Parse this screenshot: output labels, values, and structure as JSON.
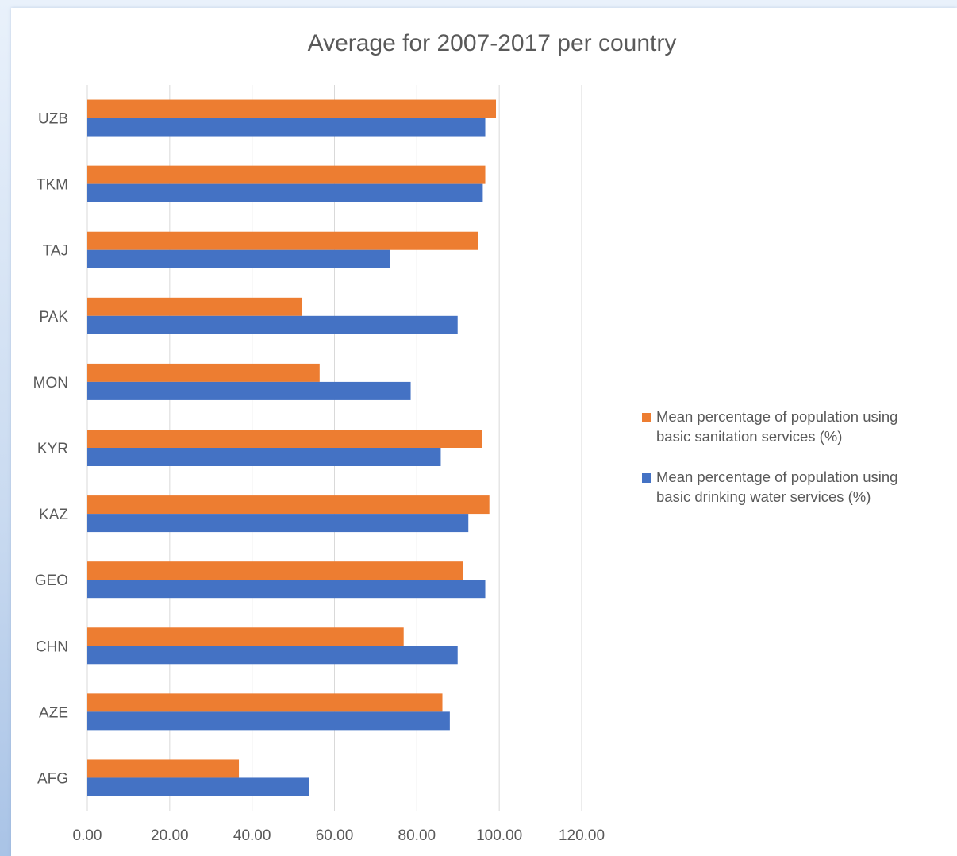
{
  "colors": {
    "sanitation": "#ed7d31",
    "water": "#4472c4",
    "grid": "#d9d9d9",
    "text": "#595959"
  },
  "chart_data": {
    "type": "bar",
    "orientation": "horizontal",
    "title": "Average for 2007-2017 per country",
    "xlabel": "",
    "ylabel": "",
    "xlim": [
      0,
      120
    ],
    "x_ticks": [
      "0.00",
      "20.00",
      "40.00",
      "60.00",
      "80.00",
      "100.00",
      "120.00"
    ],
    "categories": [
      "UZB",
      "TKM",
      "TAJ",
      "PAK",
      "MON",
      "KYR",
      "KAZ",
      "GEO",
      "CHN",
      "AZE",
      "AFG"
    ],
    "grid": true,
    "legend_position": "right",
    "series": [
      {
        "name": "Mean percentage of population using basic sanitation services (%)",
        "legend_lines": [
          "Mean percentage of population using",
          "basic sanitation services (%)"
        ],
        "color": "#ed7d31",
        "values": [
          99.2,
          96.6,
          94.8,
          52.2,
          56.4,
          95.9,
          97.6,
          91.3,
          76.8,
          86.2,
          36.8
        ]
      },
      {
        "name": "Mean percentage of population using basic drinking  water services (%)",
        "legend_lines": [
          "Mean percentage of population using",
          "basic drinking  water services (%)"
        ],
        "color": "#4472c4",
        "values": [
          96.6,
          96.0,
          73.5,
          89.9,
          78.5,
          85.8,
          92.5,
          96.6,
          89.9,
          88.0,
          53.8
        ]
      }
    ]
  }
}
